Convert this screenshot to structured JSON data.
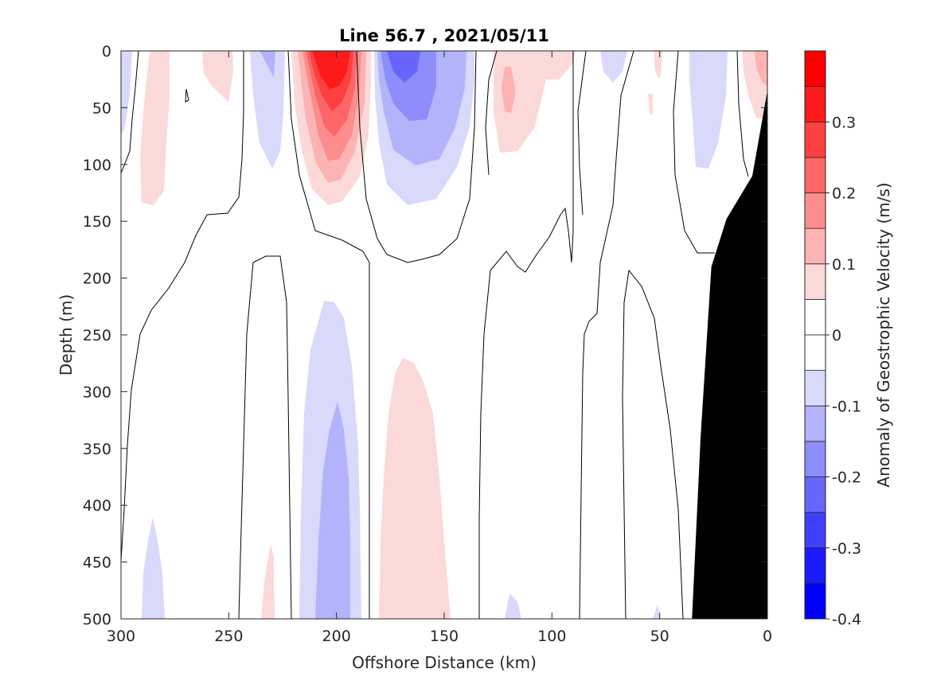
{
  "chart_data": {
    "type": "contour",
    "title": "Line 56.7 , 2021/05/11",
    "xlabel": "Offshore Distance (km)",
    "ylabel": "Depth (m)",
    "xlim": [
      300,
      0
    ],
    "ylim": [
      0,
      500
    ],
    "x_reversed": true,
    "y_reversed": true,
    "xticks": [
      300,
      250,
      200,
      150,
      100,
      50,
      0
    ],
    "yticks": [
      0,
      50,
      100,
      150,
      200,
      250,
      300,
      350,
      400,
      450,
      500
    ],
    "colorbar": {
      "label": "Anomaly of Geostrophic Velocity (m/s)",
      "range": [
        -0.4,
        0.4
      ],
      "levels": [
        -0.4,
        -0.35,
        -0.3,
        -0.25,
        -0.2,
        -0.15,
        -0.1,
        -0.05,
        0,
        0.05,
        0.1,
        0.15,
        0.2,
        0.25,
        0.3,
        0.35,
        0.4
      ],
      "ticks": [
        0.3,
        0.2,
        0.1,
        0,
        -0.1,
        -0.2,
        -0.3,
        -0.4
      ],
      "tick_labels": [
        "0.3",
        "0.2",
        "0.1",
        "0",
        "-0.1",
        "-0.2",
        "-0.3",
        "-0.4"
      ]
    },
    "features": [
      {
        "sign": "positive",
        "x": 200,
        "depth_top": 0,
        "depth_bottom": 135,
        "max": 0.35
      },
      {
        "sign": "negative",
        "x": 167,
        "depth_top": 0,
        "depth_bottom": 135,
        "min": -0.2
      },
      {
        "sign": "negative",
        "x": 202,
        "depth_top": 220,
        "depth_bottom": 500,
        "min": -0.15
      },
      {
        "sign": "positive",
        "x": 165,
        "depth_top": 270,
        "depth_bottom": 500,
        "max": 0.1
      },
      {
        "sign": "positive",
        "x": 120,
        "depth_top": 0,
        "depth_bottom": 90,
        "max": 0.15
      },
      {
        "sign": "positive",
        "x": 283,
        "depth_top": 0,
        "depth_bottom": 135,
        "max": 0.1
      },
      {
        "sign": "negative",
        "x": 228,
        "depth_top": 0,
        "depth_bottom": 105,
        "min": -0.1
      },
      {
        "sign": "negative",
        "x": 23,
        "depth_top": 0,
        "depth_bottom": 105,
        "min": -0.1
      },
      {
        "sign": "positive",
        "x": 2,
        "depth_top": 0,
        "depth_bottom": 60,
        "max": 0.15
      }
    ],
    "bathymetry": [
      [
        35,
        500
      ],
      [
        31,
        340
      ],
      [
        26,
        190
      ],
      [
        19,
        148
      ],
      [
        7,
        110
      ],
      [
        0,
        35
      ]
    ],
    "bathymetry_color": "#000000",
    "positive_color": "#ff0000",
    "negative_color": "#0000ff"
  }
}
